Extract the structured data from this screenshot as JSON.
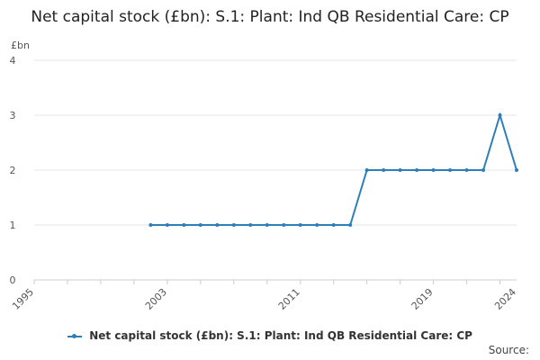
{
  "chart_data": {
    "type": "line",
    "title": "Net capital stock (£bn): S.1: Plant: Ind QB Residential Care: CP",
    "ylabel": "£bn",
    "xlabel": "",
    "xlim": [
      1995,
      2024
    ],
    "ylim": [
      0,
      4
    ],
    "yticks": [
      0,
      1,
      2,
      3,
      4
    ],
    "xticks": [
      1995,
      2003,
      2011,
      2019,
      2024
    ],
    "grid": true,
    "legend_position": "bottom",
    "series": [
      {
        "name": "Net capital stock (£bn): S.1: Plant: Ind QB Residential Care: CP",
        "color": "#2e7fb8",
        "x": [
          2002,
          2003,
          2004,
          2005,
          2006,
          2007,
          2008,
          2009,
          2010,
          2011,
          2012,
          2013,
          2014,
          2015,
          2016,
          2017,
          2018,
          2019,
          2020,
          2021,
          2022,
          2023,
          2024
        ],
        "values": [
          1,
          1,
          1,
          1,
          1,
          1,
          1,
          1,
          1,
          1,
          1,
          1,
          1,
          2,
          2,
          2,
          2,
          2,
          2,
          2,
          2,
          3,
          2
        ]
      }
    ]
  },
  "source_label": "Source:"
}
